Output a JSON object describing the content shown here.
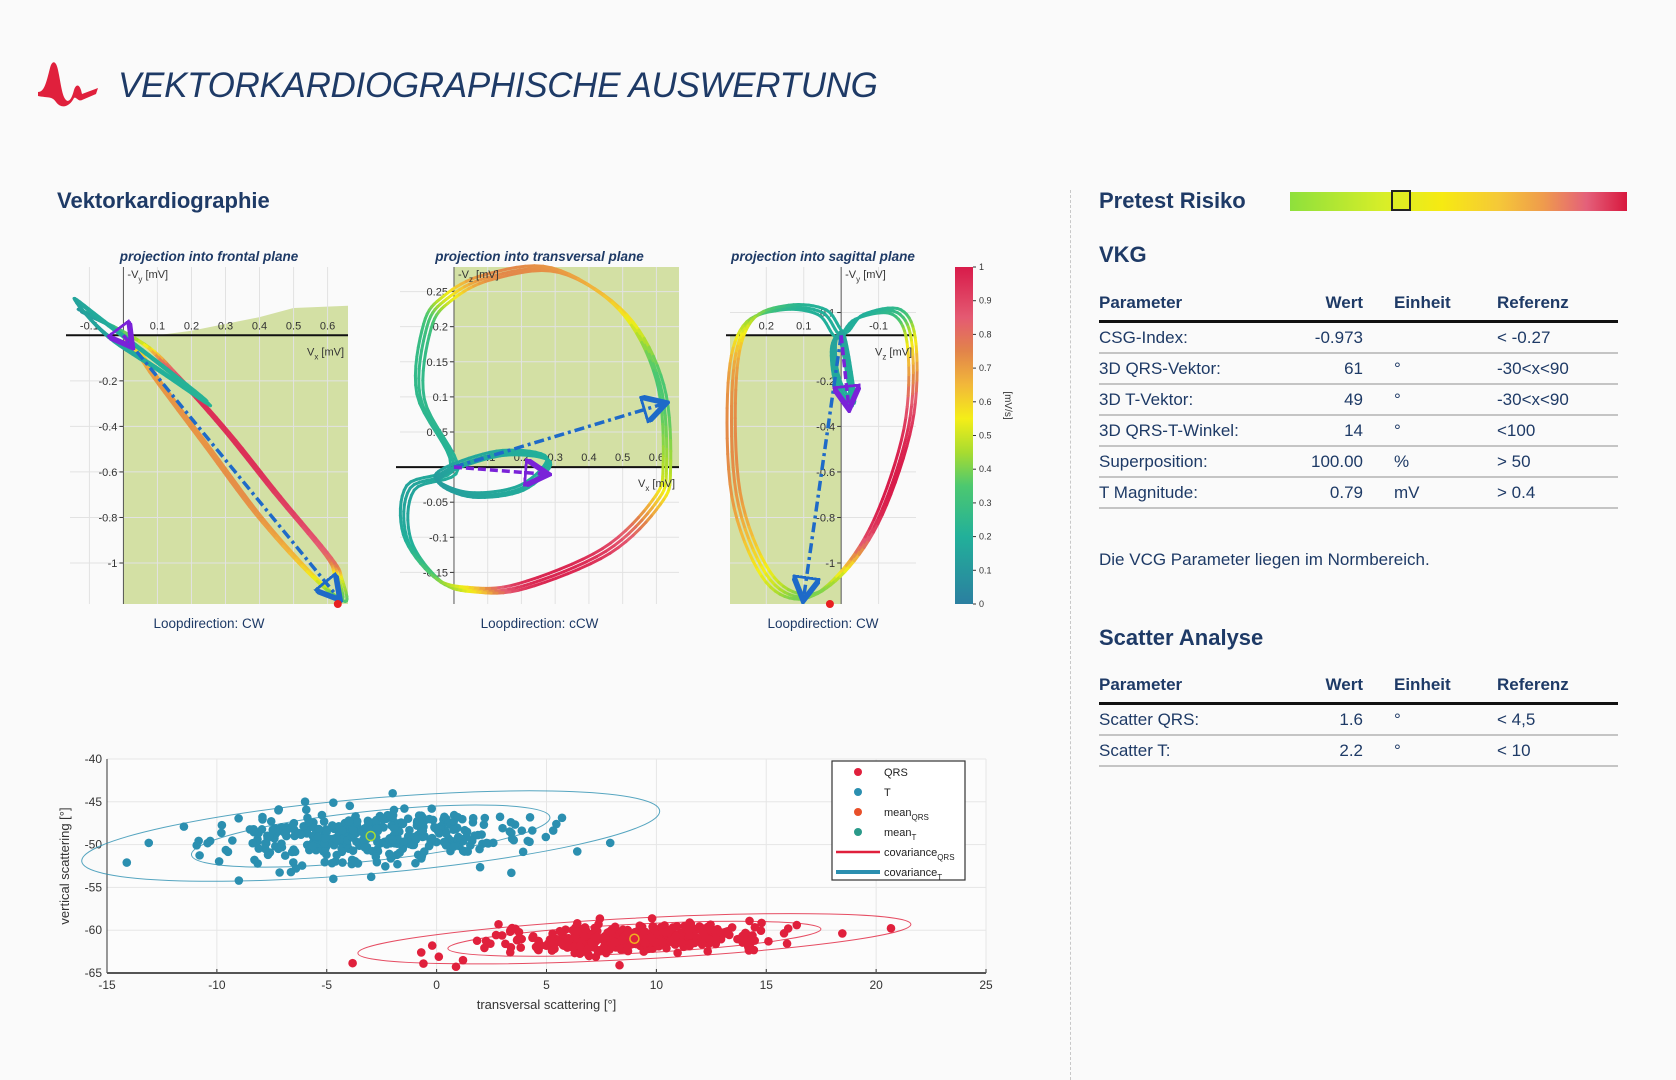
{
  "header": {
    "title": "VEKTORKARDIOGRAPHISCHE AUSWERTUNG",
    "logo_color": "#e0203c"
  },
  "left": {
    "section_title": "Vektorkardiographie"
  },
  "pretest": {
    "title": "Pretest Risiko",
    "risk_fraction": 0.33
  },
  "vkg": {
    "title": "VKG",
    "columns": [
      "Parameter",
      "Wert",
      "Einheit",
      "Referenz"
    ],
    "rows": [
      {
        "param": "CSG-Index:",
        "value": "-0.973",
        "unit": "",
        "ref": "< -0.27"
      },
      {
        "param": "3D QRS-Vektor:",
        "value": "61",
        "unit": "°",
        "ref": "-30<x<90"
      },
      {
        "param": "3D T-Vektor:",
        "value": "49",
        "unit": "°",
        "ref": "-30<x<90"
      },
      {
        "param": "3D QRS-T-Winkel:",
        "value": "14",
        "unit": "°",
        "ref": "<100"
      },
      {
        "param": "Superposition:",
        "value": "100.00",
        "unit": "%",
        "ref": "> 50"
      },
      {
        "param": "T Magnitude:",
        "value": "0.79",
        "unit": "mV",
        "ref": "> 0.4"
      }
    ],
    "note": "Die VCG Parameter liegen im Normbereich."
  },
  "scatter_table": {
    "title": "Scatter Analyse",
    "columns": [
      "Parameter",
      "Wert",
      "Einheit",
      "Referenz"
    ],
    "rows": [
      {
        "param": "Scatter QRS:",
        "value": "1.6",
        "unit": "°",
        "ref": "< 4,5"
      },
      {
        "param": "Scatter T:",
        "value": "2.2",
        "unit": "°",
        "ref": "< 10"
      }
    ]
  },
  "chart_data": [
    {
      "type": "line",
      "title": "projection into frontal plane",
      "caption": "Loopdirection: CW",
      "xlabel": {
        "pre": "V",
        "sub": "x",
        "post": " [mV]"
      },
      "ylabel": {
        "pre": "-V",
        "sub": "y",
        "post": " [mV]"
      },
      "xlim": [
        -0.157,
        0.66
      ],
      "ylim": [
        -1.18,
        0.3
      ],
      "reverse_x": false,
      "x_ticks": [
        "-0.1",
        "0.1",
        "0.2",
        "0.3",
        "0.4",
        "0.5",
        "0.6"
      ],
      "y_ticks": [
        "-0.2",
        "-0.4",
        "-0.6",
        "-0.8",
        "-1"
      ],
      "shaded_region": [
        [
          0,
          -1.18
        ],
        [
          0,
          0
        ],
        [
          0.1,
          0
        ],
        [
          0.2,
          0.02
        ],
        [
          0.4,
          0.08
        ],
        [
          0.5,
          0.12
        ],
        [
          0.66,
          0.13
        ],
        [
          0.66,
          -1.18
        ]
      ],
      "loops": [
        {
          "points": [
            [
              -0.12,
              0.1,
              0.1
            ],
            [
              -0.05,
              0.05,
              0.3
            ],
            [
              0.03,
              -0.05,
              0.55
            ],
            [
              0.1,
              -0.2,
              0.7
            ],
            [
              0.25,
              -0.5,
              0.72
            ],
            [
              0.4,
              -0.8,
              0.72
            ],
            [
              0.55,
              -1.05,
              0.6
            ],
            [
              0.64,
              -1.16,
              0.35
            ],
            [
              0.63,
              -1.06,
              0.5
            ],
            [
              0.6,
              -0.97,
              0.8
            ],
            [
              0.45,
              -0.7,
              0.92
            ],
            [
              0.3,
              -0.42,
              0.95
            ],
            [
              0.15,
              -0.17,
              0.9
            ],
            [
              0.05,
              -0.03,
              0.5
            ]
          ]
        },
        {
          "points": [
            [
              -0.14,
              0.15,
              0.15
            ],
            [
              -0.05,
              0.05,
              0.18
            ],
            [
              0.1,
              -0.12,
              0.2
            ],
            [
              0.25,
              -0.3,
              0.22
            ],
            [
              0.1,
              -0.15,
              0.2
            ],
            [
              -0.05,
              0.0,
              0.15
            ]
          ]
        }
      ],
      "qrs_vector": [
        [
          0,
          0
        ],
        [
          0.63,
          -1.15
        ]
      ],
      "t_vector": [
        [
          0,
          0
        ],
        [
          0.02,
          -0.04
        ]
      ],
      "origin_marker": [
        0.63,
        -1.18
      ]
    },
    {
      "type": "line",
      "title": "projection into transversal plane",
      "caption": "Loopdirection: cCW",
      "xlabel": {
        "pre": "V",
        "sub": "x",
        "post": " [mV]"
      },
      "ylabel": {
        "pre": "-V",
        "sub": "z",
        "post": " [mV]"
      },
      "xlim": [
        -0.16,
        0.667
      ],
      "ylim": [
        -0.195,
        0.285
      ],
      "reverse_x": false,
      "x_ticks": [
        "0.1",
        "0.2",
        "0.3",
        "0.4",
        "0.5",
        "0.6"
      ],
      "y_ticks": [
        "0.25",
        "0.2",
        "0.15",
        "0.1",
        "0.05",
        "-0.05",
        "-0.1",
        "-0.15"
      ],
      "shaded_region": [
        [
          0,
          0
        ],
        [
          0,
          0.285
        ],
        [
          0.667,
          0.285
        ],
        [
          0.667,
          0
        ]
      ],
      "loops": [
        {
          "points": [
            [
              0,
              0,
              0.2
            ],
            [
              -0.1,
              0.1,
              0.25
            ],
            [
              -0.08,
              0.2,
              0.3
            ],
            [
              -0.02,
              0.24,
              0.5
            ],
            [
              0.1,
              0.27,
              0.72
            ],
            [
              0.3,
              0.28,
              0.72
            ],
            [
              0.5,
              0.22,
              0.6
            ],
            [
              0.61,
              0.12,
              0.35
            ],
            [
              0.63,
              0.0,
              0.45
            ],
            [
              0.6,
              -0.05,
              0.6
            ],
            [
              0.45,
              -0.12,
              0.9
            ],
            [
              0.2,
              -0.17,
              0.95
            ],
            [
              0.05,
              -0.175,
              0.6
            ],
            [
              -0.05,
              -0.16,
              0.4
            ],
            [
              -0.14,
              -0.1,
              0.2
            ],
            [
              -0.13,
              -0.03,
              0.15
            ]
          ]
        },
        {
          "points": [
            [
              0,
              0,
              0.15
            ],
            [
              0.15,
              0.02,
              0.18
            ],
            [
              0.28,
              0.01,
              0.2
            ],
            [
              0.2,
              -0.03,
              0.18
            ],
            [
              0.05,
              -0.04,
              0.15
            ],
            [
              -0.05,
              -0.02,
              0.12
            ]
          ]
        }
      ],
      "qrs_vector": [
        [
          0,
          0
        ],
        [
          0.62,
          0.09
        ]
      ],
      "t_vector": [
        [
          0,
          0
        ],
        [
          0.27,
          -0.01
        ]
      ]
    },
    {
      "type": "line",
      "title": "projection into sagittal plane",
      "caption": "Loopdirection: CW",
      "xlabel": {
        "pre": "V",
        "sub": "z",
        "post": " [mV]"
      },
      "ylabel": {
        "pre": "-V",
        "sub": "y",
        "post": " [mV]"
      },
      "xlim": [
        -0.2,
        0.297
      ],
      "ylim": [
        -1.18,
        0.3
      ],
      "reverse_x": true,
      "x_ticks": [
        "0.2",
        "0.1",
        "-0.1"
      ],
      "y_ticks": [
        "0.1",
        "-0.2",
        "-0.4",
        "-0.6",
        "-0.8",
        "-1"
      ],
      "shaded_region": [
        [
          0,
          0
        ],
        [
          0.297,
          0
        ],
        [
          0.297,
          -1.18
        ],
        [
          0,
          -1.18
        ]
      ],
      "loops": [
        {
          "points": [
            [
              0,
              0,
              0.2
            ],
            [
              0.05,
              0.1,
              0.2
            ],
            [
              0.15,
              0.12,
              0.25
            ],
            [
              0.25,
              0.05,
              0.45
            ],
            [
              0.29,
              -0.2,
              0.7
            ],
            [
              0.28,
              -0.7,
              0.72
            ],
            [
              0.2,
              -1.05,
              0.55
            ],
            [
              0.1,
              -1.15,
              0.4
            ],
            [
              0,
              -1.05,
              0.5
            ],
            [
              -0.1,
              -0.8,
              0.95
            ],
            [
              -0.18,
              -0.4,
              0.95
            ],
            [
              -0.19,
              -0.05,
              0.6
            ],
            [
              -0.15,
              0.1,
              0.3
            ],
            [
              -0.05,
              0.08,
              0.2
            ]
          ]
        },
        {
          "points": [
            [
              0,
              0,
              0.15
            ],
            [
              -0.02,
              -0.15,
              0.18
            ],
            [
              -0.03,
              -0.31,
              0.2
            ],
            [
              0.01,
              -0.2,
              0.18
            ],
            [
              0.02,
              -0.05,
              0.15
            ]
          ]
        }
      ],
      "qrs_vector": [
        [
          0,
          0
        ],
        [
          0.1,
          -1.15
        ]
      ],
      "t_vector": [
        [
          0,
          0
        ],
        [
          -0.02,
          -0.31
        ]
      ],
      "origin_marker": [
        0.03,
        -1.18
      ]
    },
    {
      "type": "colorbar",
      "label": "[mV/s]",
      "range": [
        0,
        1
      ],
      "ticks": [
        "0",
        "0.1",
        "0.2",
        "0.3",
        "0.4",
        "0.5",
        "0.6",
        "0.7",
        "0.8",
        "0.9",
        "1"
      ],
      "colormap": [
        [
          0,
          "#2b7fa0"
        ],
        [
          0.2,
          "#22b09a"
        ],
        [
          0.35,
          "#4cc870"
        ],
        [
          0.45,
          "#a8dc30"
        ],
        [
          0.55,
          "#f4ee18"
        ],
        [
          0.65,
          "#f2b83a"
        ],
        [
          0.75,
          "#e2844a"
        ],
        [
          0.85,
          "#e45a72"
        ],
        [
          1,
          "#d81b4a"
        ]
      ]
    },
    {
      "type": "scatter",
      "xlabel": "transversal scattering  [°]",
      "ylabel": "vertical scattering [°]",
      "xlim": [
        -15,
        25
      ],
      "ylim": [
        -65,
        -40
      ],
      "x_ticks": [
        "-15",
        "-10",
        "-5",
        "0",
        "5",
        "10",
        "15",
        "20",
        "25"
      ],
      "y_ticks": [
        "-40",
        "-45",
        "-50",
        "-55",
        "-60",
        "-65"
      ],
      "grid": true,
      "legend_position": "top-right",
      "legend": [
        {
          "label": "QRS",
          "sub": "",
          "kind": "dot",
          "color": "#e0203c"
        },
        {
          "label": "T",
          "sub": "",
          "kind": "dot",
          "color": "#2b8fb0"
        },
        {
          "label": "mean",
          "sub": "QRS",
          "kind": "dot",
          "color": "#e8502a"
        },
        {
          "label": "mean",
          "sub": "T",
          "kind": "dot",
          "color": "#2b9a8a"
        },
        {
          "label": "covariance",
          "sub": "QRS",
          "kind": "line",
          "color": "#e0203c"
        },
        {
          "label": "covariance",
          "sub": "T",
          "kind": "line",
          "color": "#2b8fb0"
        }
      ],
      "series": [
        {
          "name": "QRS",
          "color": "#e0203c",
          "mean": [
            9,
            -61
          ],
          "sd": [
            3.0,
            0.75
          ],
          "count": 420,
          "outliers": [
            [
              -0.7,
              -62.6
            ],
            [
              -0.6,
              -63.9
            ],
            [
              0.1,
              -63.1
            ],
            [
              -0.2,
              -61.8
            ],
            [
              1.2,
              -63.5
            ],
            [
              6.4,
              -59.2
            ],
            [
              16,
              -59.8
            ],
            [
              15.1,
              -61.3
            ]
          ],
          "ellipses": [
            {
              "rx": 8.5,
              "ry": 1.7,
              "angle": 3
            },
            {
              "rx": 12.6,
              "ry": 2.4,
              "angle": 3
            }
          ]
        },
        {
          "name": "T",
          "color": "#2b8fb0",
          "mean": [
            -3,
            -49
          ],
          "sd": [
            3.2,
            1.5
          ],
          "count": 380,
          "outliers": [
            [
              -14.1,
              -52.1
            ],
            [
              -13.1,
              -49.8
            ],
            [
              -11.5,
              -47.9
            ],
            [
              -9,
              -54.2
            ],
            [
              -4.7,
              -54
            ],
            [
              -4.7,
              -45.1
            ],
            [
              -2,
              -44
            ],
            [
              6.4,
              -50.8
            ],
            [
              7.9,
              -49.8
            ],
            [
              3.4,
              -53.3
            ],
            [
              -7.2,
              -46
            ]
          ],
          "ellipses": [
            {
              "rx": 8.2,
              "ry": 2.9,
              "angle": 6
            },
            {
              "rx": 13.2,
              "ry": 4.4,
              "angle": 5
            }
          ]
        }
      ],
      "mean_markers": [
        {
          "x": 9,
          "y": -61,
          "color": "#f0b020"
        },
        {
          "x": -3,
          "y": -49,
          "color": "#a8dc30"
        }
      ]
    }
  ]
}
